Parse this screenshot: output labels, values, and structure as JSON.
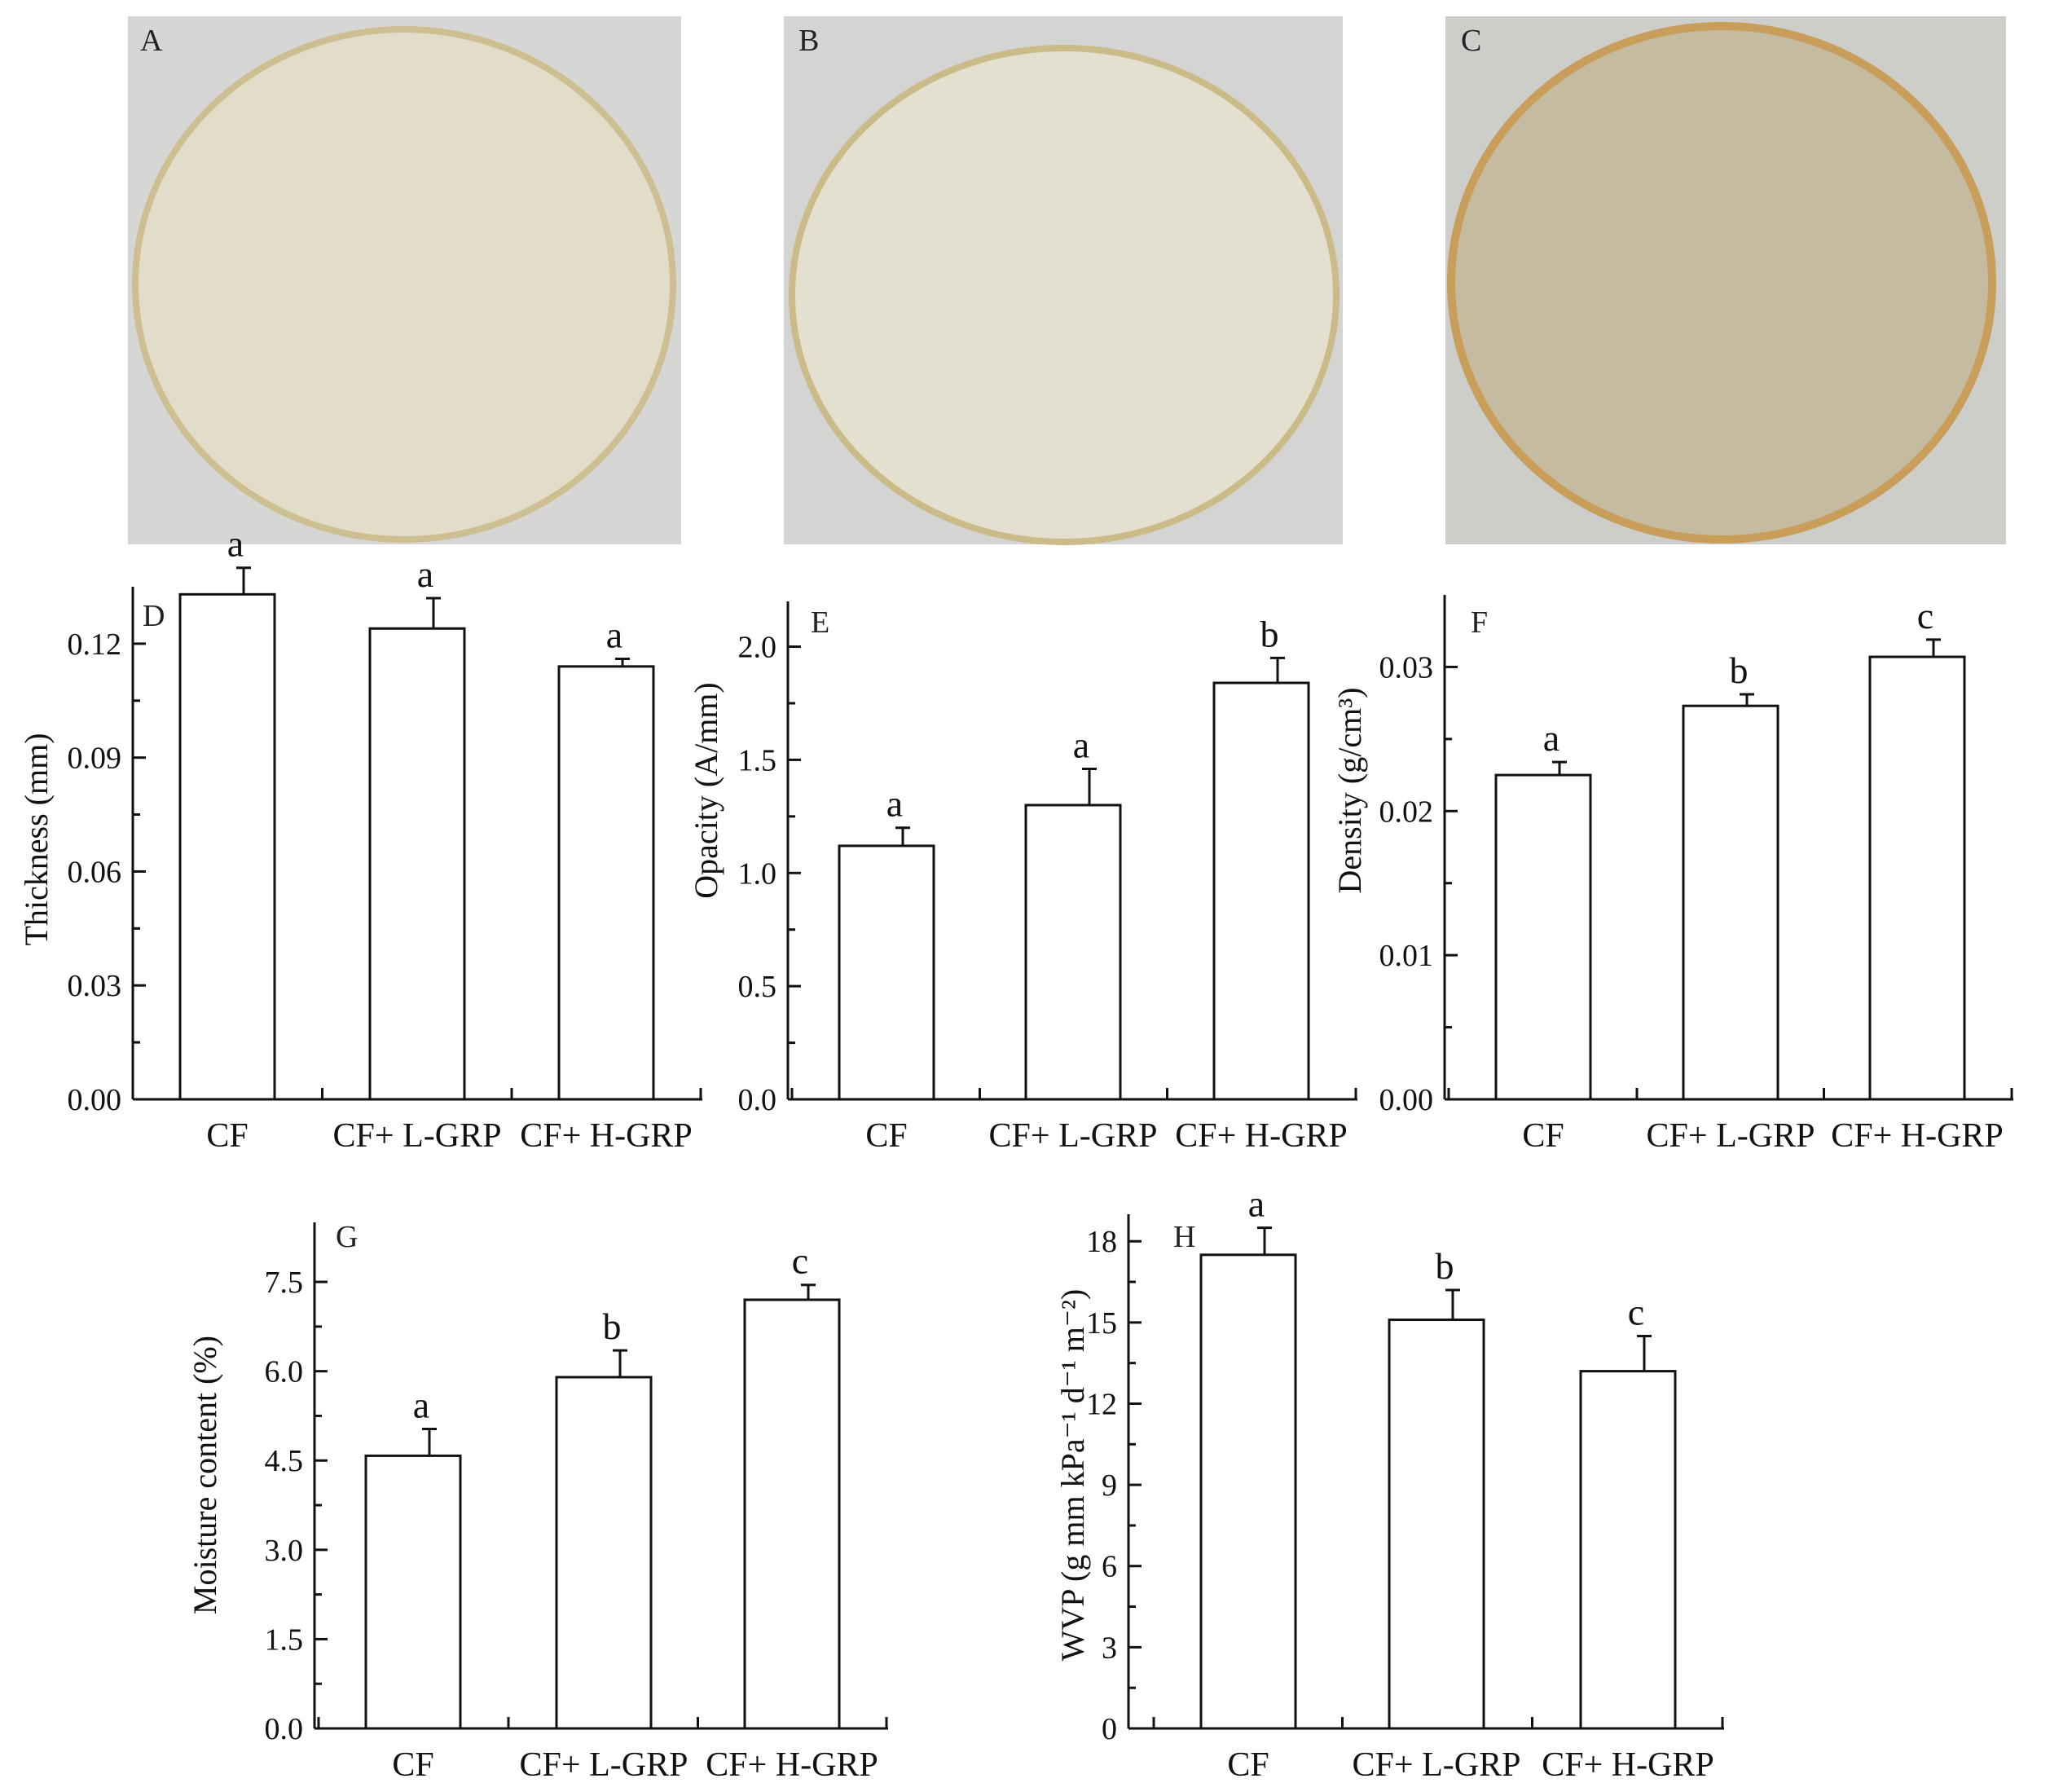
{
  "photos": [
    {
      "label": "A",
      "bg": "#d6d6d4",
      "fill": "#e2ddc8",
      "rim": "#cdbf92"
    },
    {
      "label": "B",
      "bg": "#d4d4d2",
      "fill": "#e4e0cf",
      "rim": "#cbbb88"
    },
    {
      "label": "C",
      "bg": "#cdcdca",
      "fill": "#c4bba0",
      "rim": "#c99e5a"
    }
  ],
  "chart_data": [
    {
      "panel": "D",
      "type": "bar",
      "categories": [
        "CF",
        "CF+ L-GRP",
        "CF+ H-GRP"
      ],
      "values": [
        0.133,
        0.124,
        0.114
      ],
      "errors": [
        0.007,
        0.008,
        0.002
      ],
      "significance": [
        "a",
        "a",
        "a"
      ],
      "ylabel": "Thickness (mm)",
      "ylim": [
        0,
        0.135
      ],
      "yticks": [
        0.0,
        0.03,
        0.06,
        0.09,
        0.12
      ],
      "ytick_labels": [
        "0.00",
        "0.03",
        "0.06",
        "0.09",
        "0.12"
      ]
    },
    {
      "panel": "E",
      "type": "bar",
      "categories": [
        "CF",
        "CF+ L-GRP",
        "CF+ H-GRP"
      ],
      "values": [
        1.12,
        1.3,
        1.84
      ],
      "errors": [
        0.08,
        0.16,
        0.11
      ],
      "significance": [
        "a",
        "a",
        "b"
      ],
      "ylabel": "Opacity (A/mm)",
      "ylim": [
        0,
        2.2
      ],
      "yticks": [
        0.0,
        0.5,
        1.0,
        1.5,
        2.0
      ],
      "ytick_labels": [
        "0.0",
        "0.5",
        "1.0",
        "1.5",
        "2.0"
      ]
    },
    {
      "panel": "F",
      "type": "bar",
      "categories": [
        "CF",
        "CF+ L-GRP",
        "CF+ H-GRP"
      ],
      "values": [
        0.0225,
        0.0273,
        0.0307
      ],
      "errors": [
        0.0009,
        0.0008,
        0.0012
      ],
      "significance": [
        "a",
        "b",
        "c"
      ],
      "ylabel": "Density (g/cm³)",
      "ylim": [
        0,
        0.035
      ],
      "yticks": [
        0.0,
        0.01,
        0.02,
        0.03
      ],
      "ytick_labels": [
        "0.00",
        "0.01",
        "0.02",
        "0.03"
      ]
    },
    {
      "panel": "G",
      "type": "bar",
      "categories": [
        "CF",
        "CF+ L-GRP",
        "CF+ H-GRP"
      ],
      "values": [
        4.58,
        5.9,
        7.2
      ],
      "errors": [
        0.45,
        0.45,
        0.25
      ],
      "significance": [
        "a",
        "b",
        "c"
      ],
      "ylabel": "Moisture content (%)",
      "ylim": [
        0,
        8.5
      ],
      "yticks": [
        0.0,
        1.5,
        3.0,
        4.5,
        6.0,
        7.5
      ],
      "ytick_labels": [
        "0.0",
        "1.5",
        "3.0",
        "4.5",
        "6.0",
        "7.5"
      ]
    },
    {
      "panel": "H",
      "type": "bar",
      "categories": [
        "CF",
        "CF+ L-GRP",
        "CF+ H-GRP"
      ],
      "values": [
        17.5,
        15.1,
        13.2
      ],
      "errors": [
        1.0,
        1.1,
        1.3
      ],
      "significance": [
        "a",
        "b",
        "c"
      ],
      "ylabel": "WVP (g mm kPa⁻¹ d⁻¹ m⁻²)",
      "ylim": [
        0,
        19
      ],
      "yticks": [
        0,
        3,
        6,
        9,
        12,
        15,
        18
      ],
      "ytick_labels": [
        "0",
        "3",
        "6",
        "9",
        "12",
        "15",
        "18"
      ]
    }
  ]
}
